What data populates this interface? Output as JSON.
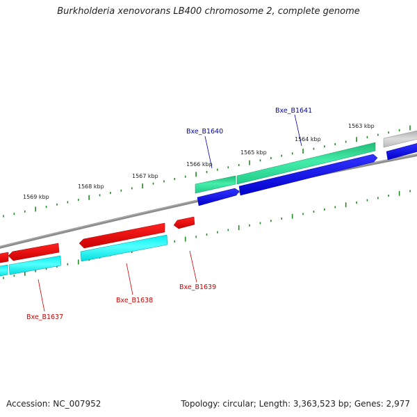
{
  "title": "Burkholderia xenovorans LB400 chromosome 2, complete genome",
  "footer": {
    "accession": "Accession: NC_007952",
    "summary": "Topology: circular; Length: 3,363,523 bp; Genes: 2,977"
  },
  "ticks": [
    {
      "label": "1563 kbp"
    },
    {
      "label": "1564 kbp"
    },
    {
      "label": "1565 kbp"
    },
    {
      "label": "1566 kbp"
    },
    {
      "label": "1567 kbp"
    },
    {
      "label": "1568 kbp"
    },
    {
      "label": "1569 kbp"
    }
  ],
  "genes_forward": [
    {
      "label": "Bxe_B1641",
      "color": "#0000aa"
    },
    {
      "label": "Bxe_B1640",
      "color": "#0000aa"
    }
  ],
  "genes_reverse": [
    {
      "label": "Bxe_B1639",
      "color": "#cc0000"
    },
    {
      "label": "Bxe_B1638",
      "color": "#cc0000"
    },
    {
      "label": "Bxe_B1637",
      "color": "#cc0000"
    }
  ],
  "colors": {
    "backbone": "#888888",
    "forward_cds": "#0000ee",
    "forward_feature": "#33dd99",
    "reverse_cds": "#ff0000",
    "reverse_feature": "#00ffff",
    "unknown_feature": "#bbbbbb",
    "tick_marks": "#228822"
  }
}
